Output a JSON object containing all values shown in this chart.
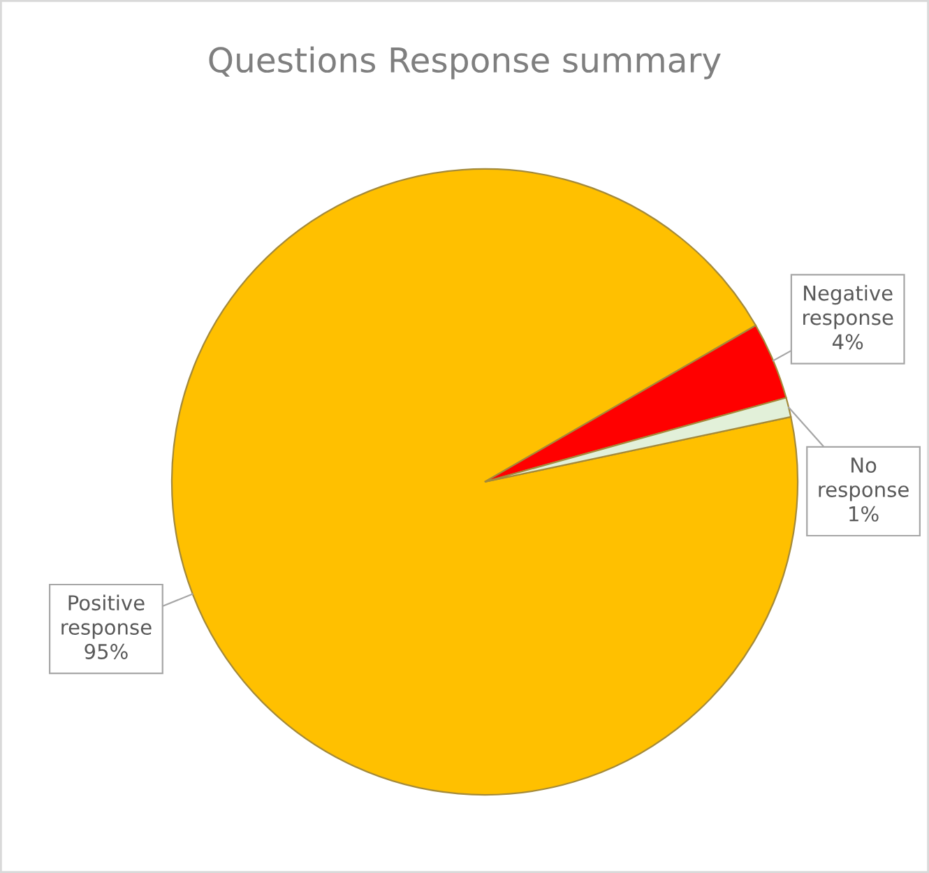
{
  "chart_data": {
    "type": "pie",
    "title": "Questions Response summary",
    "categories": [
      "Positive response",
      "Negative response",
      "No response"
    ],
    "values": [
      95,
      4,
      1
    ],
    "colors": [
      "#ffc000",
      "#ff0000",
      "#e2f0d9"
    ],
    "value_labels": [
      "95%",
      "4%",
      "1%"
    ]
  }
}
